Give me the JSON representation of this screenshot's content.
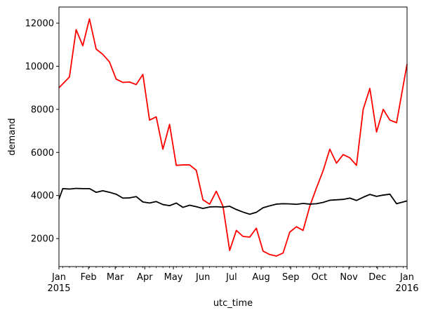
{
  "chart_data": {
    "type": "line",
    "title": "",
    "xlabel": "utc_time",
    "ylabel": "demand",
    "xlim": [
      "2015-01-01",
      "2016-01-01"
    ],
    "ylim": [
      700,
      12750
    ],
    "grid": false,
    "x_major_ticks": [
      {
        "date": "2015-01-01",
        "label": "Jan",
        "sublabel": "2015"
      },
      {
        "date": "2015-02-01",
        "label": "Feb"
      },
      {
        "date": "2015-03-01",
        "label": "Mar"
      },
      {
        "date": "2015-04-01",
        "label": "Apr"
      },
      {
        "date": "2015-05-01",
        "label": "May"
      },
      {
        "date": "2015-06-01",
        "label": "Jun"
      },
      {
        "date": "2015-07-01",
        "label": "Jul"
      },
      {
        "date": "2015-08-01",
        "label": "Aug"
      },
      {
        "date": "2015-09-01",
        "label": "Sep"
      },
      {
        "date": "2015-10-01",
        "label": "Oct"
      },
      {
        "date": "2015-11-01",
        "label": "Nov"
      },
      {
        "date": "2015-12-01",
        "label": "Dec"
      },
      {
        "date": "2016-01-01",
        "label": "Jan",
        "sublabel": "2016"
      }
    ],
    "y_ticks": [
      2000,
      4000,
      6000,
      8000,
      10000,
      12000
    ],
    "series": [
      {
        "color": "#ff0000",
        "points": [
          [
            "2015-01-01",
            9000
          ],
          [
            "2015-01-12",
            9500
          ],
          [
            "2015-01-19",
            11700
          ],
          [
            "2015-01-26",
            10950
          ],
          [
            "2015-02-02",
            12200
          ],
          [
            "2015-02-09",
            10800
          ],
          [
            "2015-02-16",
            10550
          ],
          [
            "2015-02-23",
            10200
          ],
          [
            "2015-03-02",
            9400
          ],
          [
            "2015-03-09",
            9250
          ],
          [
            "2015-03-16",
            9270
          ],
          [
            "2015-03-23",
            9150
          ],
          [
            "2015-03-30",
            9620
          ],
          [
            "2015-04-06",
            7500
          ],
          [
            "2015-04-13",
            7650
          ],
          [
            "2015-04-20",
            6150
          ],
          [
            "2015-04-27",
            7300
          ],
          [
            "2015-05-04",
            5400
          ],
          [
            "2015-05-11",
            5420
          ],
          [
            "2015-05-18",
            5420
          ],
          [
            "2015-05-25",
            5170
          ],
          [
            "2015-06-01",
            3800
          ],
          [
            "2015-06-08",
            3600
          ],
          [
            "2015-06-15",
            4200
          ],
          [
            "2015-06-22",
            3500
          ],
          [
            "2015-06-29",
            1450
          ],
          [
            "2015-07-06",
            2380
          ],
          [
            "2015-07-13",
            2100
          ],
          [
            "2015-07-20",
            2070
          ],
          [
            "2015-07-27",
            2480
          ],
          [
            "2015-08-03",
            1420
          ],
          [
            "2015-08-10",
            1260
          ],
          [
            "2015-08-17",
            1190
          ],
          [
            "2015-08-24",
            1330
          ],
          [
            "2015-08-31",
            2300
          ],
          [
            "2015-09-07",
            2550
          ],
          [
            "2015-09-14",
            2380
          ],
          [
            "2015-09-21",
            3500
          ],
          [
            "2015-09-28",
            4350
          ],
          [
            "2015-10-05",
            5150
          ],
          [
            "2015-10-12",
            6150
          ],
          [
            "2015-10-19",
            5500
          ],
          [
            "2015-10-26",
            5900
          ],
          [
            "2015-11-02",
            5750
          ],
          [
            "2015-11-09",
            5400
          ],
          [
            "2015-11-16",
            8000
          ],
          [
            "2015-11-23",
            8970
          ],
          [
            "2015-11-30",
            6950
          ],
          [
            "2015-12-07",
            8000
          ],
          [
            "2015-12-14",
            7500
          ],
          [
            "2015-12-21",
            7380
          ],
          [
            "2016-01-01",
            10100
          ]
        ]
      },
      {
        "color": "#000000",
        "points": [
          [
            "2015-01-01",
            3830
          ],
          [
            "2015-01-05",
            4320
          ],
          [
            "2015-01-12",
            4300
          ],
          [
            "2015-01-19",
            4330
          ],
          [
            "2015-01-26",
            4320
          ],
          [
            "2015-02-02",
            4320
          ],
          [
            "2015-02-09",
            4150
          ],
          [
            "2015-02-16",
            4220
          ],
          [
            "2015-02-23",
            4150
          ],
          [
            "2015-03-02",
            4060
          ],
          [
            "2015-03-09",
            3880
          ],
          [
            "2015-03-16",
            3890
          ],
          [
            "2015-03-23",
            3950
          ],
          [
            "2015-03-30",
            3700
          ],
          [
            "2015-04-06",
            3650
          ],
          [
            "2015-04-13",
            3720
          ],
          [
            "2015-04-20",
            3580
          ],
          [
            "2015-04-27",
            3530
          ],
          [
            "2015-05-04",
            3650
          ],
          [
            "2015-05-11",
            3450
          ],
          [
            "2015-05-18",
            3550
          ],
          [
            "2015-05-25",
            3480
          ],
          [
            "2015-06-01",
            3400
          ],
          [
            "2015-06-08",
            3470
          ],
          [
            "2015-06-15",
            3480
          ],
          [
            "2015-06-22",
            3460
          ],
          [
            "2015-06-29",
            3500
          ],
          [
            "2015-07-06",
            3350
          ],
          [
            "2015-07-13",
            3230
          ],
          [
            "2015-07-20",
            3130
          ],
          [
            "2015-07-27",
            3220
          ],
          [
            "2015-08-03",
            3430
          ],
          [
            "2015-08-10",
            3520
          ],
          [
            "2015-08-17",
            3600
          ],
          [
            "2015-08-24",
            3620
          ],
          [
            "2015-08-31",
            3610
          ],
          [
            "2015-09-07",
            3590
          ],
          [
            "2015-09-14",
            3630
          ],
          [
            "2015-09-21",
            3600
          ],
          [
            "2015-09-28",
            3620
          ],
          [
            "2015-10-05",
            3680
          ],
          [
            "2015-10-12",
            3780
          ],
          [
            "2015-10-19",
            3800
          ],
          [
            "2015-10-26",
            3820
          ],
          [
            "2015-11-02",
            3880
          ],
          [
            "2015-11-09",
            3770
          ],
          [
            "2015-11-16",
            3920
          ],
          [
            "2015-11-23",
            4050
          ],
          [
            "2015-11-30",
            3960
          ],
          [
            "2015-12-07",
            4020
          ],
          [
            "2015-12-14",
            4060
          ],
          [
            "2015-12-21",
            3620
          ],
          [
            "2016-01-01",
            3750
          ]
        ]
      }
    ]
  }
}
